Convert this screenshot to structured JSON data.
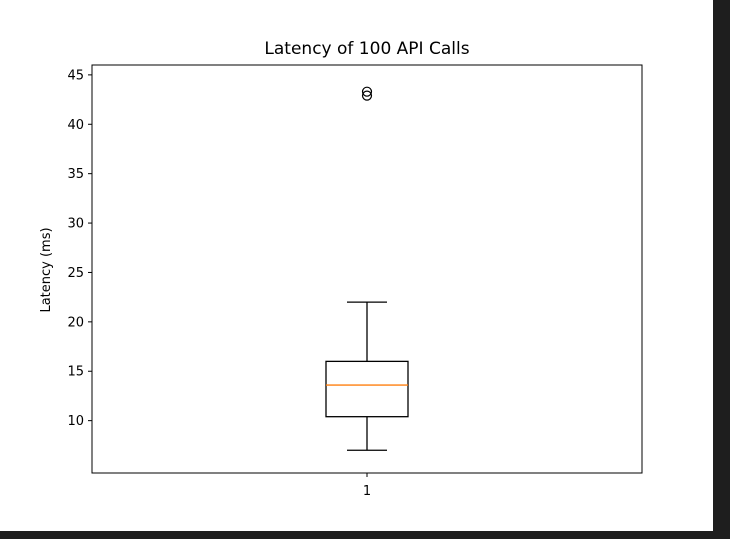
{
  "chart_data": {
    "type": "box",
    "title": "Latency of 100 API Calls",
    "xlabel": "",
    "ylabel": "Latency (ms)",
    "categories": [
      "1"
    ],
    "ylim": [
      4.7,
      46.0
    ],
    "yticks": [
      10,
      15,
      20,
      25,
      30,
      35,
      40,
      45
    ],
    "grid": false,
    "boxes": [
      {
        "label": "1",
        "whisker_low": 7.0,
        "q1": 10.4,
        "median": 13.6,
        "q3": 16.0,
        "whisker_high": 22.0,
        "outliers": [
          42.9,
          43.3
        ]
      }
    ],
    "colors": {
      "box": "#000000",
      "median": "#ff7f0e",
      "outlier": "#000000"
    }
  }
}
